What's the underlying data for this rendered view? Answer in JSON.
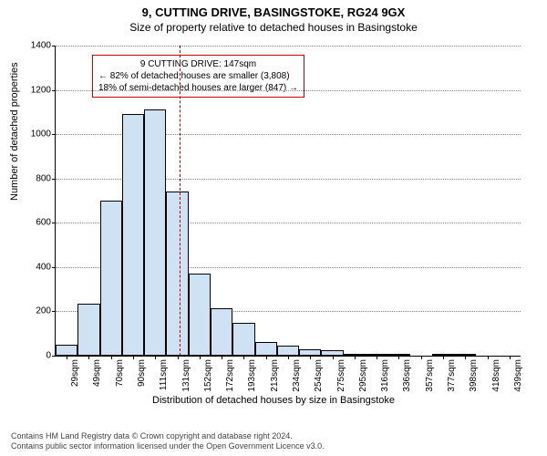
{
  "title": "9, CUTTING DRIVE, BASINGSTOKE, RG24 9GX",
  "subtitle": "Size of property relative to detached houses in Basingstoke",
  "yaxis": {
    "title": "Number of detached properties",
    "min": 0,
    "max": 1400,
    "step": 200,
    "ticks": [
      0,
      200,
      400,
      600,
      800,
      1000,
      1200,
      1400
    ]
  },
  "xaxis": {
    "title": "Distribution of detached houses by size in Basingstoke",
    "labels": [
      "29sqm",
      "49sqm",
      "70sqm",
      "90sqm",
      "111sqm",
      "131sqm",
      "152sqm",
      "172sqm",
      "193sqm",
      "213sqm",
      "234sqm",
      "254sqm",
      "275sqm",
      "295sqm",
      "316sqm",
      "336sqm",
      "357sqm",
      "377sqm",
      "398sqm",
      "418sqm",
      "439sqm"
    ]
  },
  "bars": {
    "values": [
      50,
      235,
      700,
      1090,
      1110,
      740,
      370,
      215,
      150,
      60,
      45,
      30,
      25,
      5,
      10,
      5,
      0,
      3,
      3,
      0,
      0
    ],
    "fill_color": "#cfe2f3",
    "border_color": "#000000",
    "width_fraction": 1.0
  },
  "reference_line": {
    "x_index": 5.6,
    "color": "#cc0000"
  },
  "annotation": {
    "border_color": "#cc0000",
    "line1": "9 CUTTING DRIVE: 147sqm",
    "line2": "← 82% of detached houses are smaller (3,808)",
    "line3": "18% of semi-detached houses are larger (847) →"
  },
  "grid": {
    "color": "#888888",
    "style": "dotted"
  },
  "footer": {
    "line1": "Contains HM Land Registry data © Crown copyright and database right 2024.",
    "line2": "Contains public sector information licensed under the Open Government Licence v3.0."
  },
  "colors": {
    "background": "#ffffff",
    "text": "#000000"
  }
}
